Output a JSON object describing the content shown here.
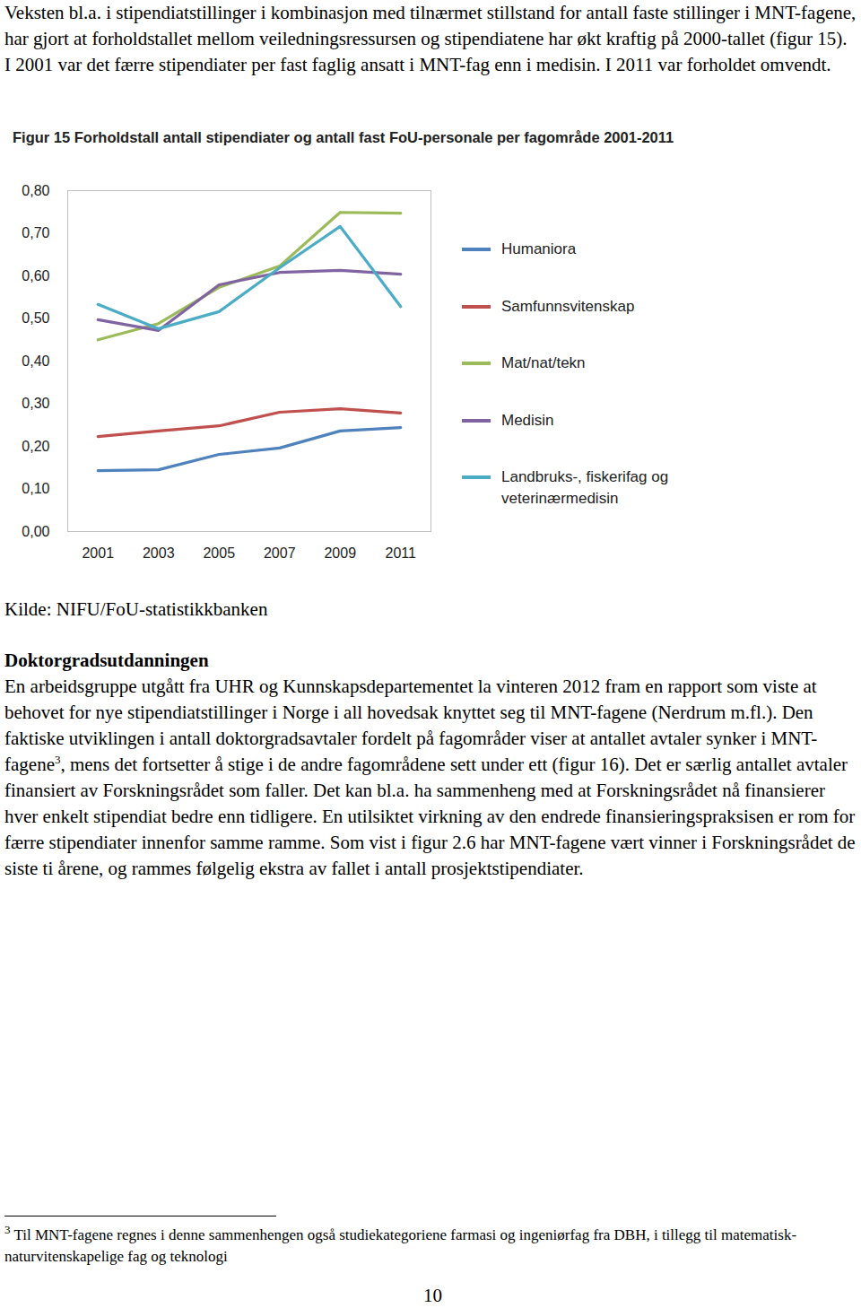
{
  "intro": "Veksten bl.a. i stipendiatstillinger i kombinasjon med tilnærmet stillstand for antall faste stillinger i MNT-fagene, har gjort at forholdstallet mellom veiledningsressursen og stipendiatene har økt kraftig på 2000-tallet (figur 15). I 2001 var det færre stipendiater per fast faglig ansatt i MNT-fag enn i medisin. I 2011 var forholdet omvendt.",
  "chart_data": {
    "type": "line",
    "title": "Figur 15 Forholdstall antall stipendiater og antall fast FoU-personale per fagområde 2001-2011",
    "x": [
      2001,
      2003,
      2005,
      2007,
      2009,
      2011
    ],
    "xlim": [
      2000,
      2012
    ],
    "xticks": [
      2001,
      2003,
      2005,
      2007,
      2009,
      2011
    ],
    "ylim": [
      0,
      0.8
    ],
    "yticks": [
      {
        "value": 0,
        "label": "0,00"
      },
      {
        "value": 0.1,
        "label": "0,10"
      },
      {
        "value": 0.2,
        "label": "0,20"
      },
      {
        "value": 0.3,
        "label": "0,30"
      },
      {
        "value": 0.4,
        "label": "0,40"
      },
      {
        "value": 0.5,
        "label": "0,50"
      },
      {
        "value": 0.6,
        "label": "0,60"
      },
      {
        "value": 0.7,
        "label": "0,70"
      },
      {
        "value": 0.8,
        "label": "0,80"
      }
    ],
    "grid": false,
    "legend": "right",
    "series": [
      {
        "name": "Humaniora",
        "color": "#4f81bd",
        "values": [
          0.143,
          0.145,
          0.181,
          0.196,
          0.236,
          0.244
        ]
      },
      {
        "name": "Samfunnsvitenskap",
        "color": "#c0504d",
        "values": [
          0.223,
          0.236,
          0.248,
          0.28,
          0.288,
          0.278
        ]
      },
      {
        "name": "Mat/nat/tekn",
        "color": "#9bbb59",
        "values": [
          0.45,
          0.488,
          0.573,
          0.623,
          0.749,
          0.747
        ]
      },
      {
        "name": "Medisin",
        "color": "#8064a2",
        "values": [
          0.497,
          0.472,
          0.579,
          0.608,
          0.613,
          0.604
        ]
      },
      {
        "name": "Landbruks-, fiskerifag og veterinærmedisin",
        "color": "#4bacc6",
        "values": [
          0.533,
          0.476,
          0.516,
          0.619,
          0.716,
          0.528
        ]
      }
    ]
  },
  "source": "Kilde: NIFU/FoU-statistikkbanken",
  "heading": "Doktorgradsutdanningen",
  "body_before_note": "En arbeidsgruppe utgått fra UHR og Kunnskapsdepartementet la vinteren 2012 fram en rapport som viste at behovet for nye stipendiatstillinger i Norge i all hovedsak knyttet seg til MNT-fagene (Nerdrum m.fl.). Den faktiske utviklingen i antall doktorgradsavtaler fordelt på fagområder viser at antallet avtaler synker i MNT-fagene",
  "note_marker": "3",
  "body_after_note": ", mens det fortsetter å stige i de andre fagområdene sett under ett (figur 16).  Det er særlig antallet avtaler finansiert av Forskningsrådet som faller. Det kan bl.a. ha sammenheng med at Forskningsrådet nå finansierer hver enkelt stipendiat bedre enn tidligere. En utilsiktet virkning av den endrede finansieringspraksisen er rom for færre stipendiater innenfor samme ramme. Som vist i figur 2.6 har MNT-fagene vært vinner i Forskningsrådet de siste ti årene, og rammes følgelig ekstra av fallet i antall prosjektstipendiater.",
  "footnote": "Til MNT-fagene regnes i denne sammenhengen også studiekategoriene farmasi og ingeniørfag fra DBH, i tillegg til matematisk-naturvitenskapelige fag og teknologi",
  "page_number": "10"
}
